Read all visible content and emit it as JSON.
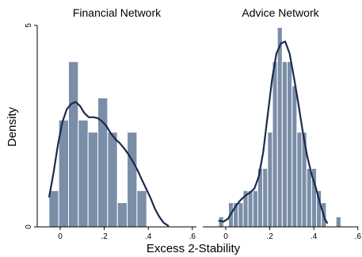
{
  "chart_data": {
    "type": "histogram",
    "xlabel": "Excess 2-Stability",
    "ylabel": "Density",
    "xlim": [
      -0.08,
      0.64
    ],
    "ylim": [
      0,
      5
    ],
    "x_ticks": [
      0,
      0.2,
      0.4,
      0.6
    ],
    "x_tick_labels": [
      "0",
      ".2",
      ".4",
      ".6"
    ],
    "y_ticks": [
      0,
      5
    ],
    "y_tick_labels": [
      "0",
      "5"
    ],
    "bar_color": "#7b8ea8",
    "curve_color": "#1a2a4f",
    "grid": false,
    "panels": [
      {
        "title": "Financial Network",
        "bin_width": 0.0444,
        "bins": [
          {
            "x0": -0.051,
            "x1": -0.0066,
            "density": 0.9
          },
          {
            "x0": -0.0066,
            "x1": 0.0378,
            "density": 2.65
          },
          {
            "x0": 0.0378,
            "x1": 0.0822,
            "density": 4.1
          },
          {
            "x0": 0.0822,
            "x1": 0.1266,
            "density": 2.65
          },
          {
            "x0": 0.1266,
            "x1": 0.171,
            "density": 2.35
          },
          {
            "x0": 0.171,
            "x1": 0.2154,
            "density": 3.2
          },
          {
            "x0": 0.2154,
            "x1": 0.2598,
            "density": 2.35
          },
          {
            "x0": 0.2598,
            "x1": 0.3042,
            "density": 0.6
          },
          {
            "x0": 0.3042,
            "x1": 0.3486,
            "density": 2.35
          },
          {
            "x0": 0.3486,
            "x1": 0.393,
            "density": 0.9
          }
        ],
        "kde": [
          [
            -0.05,
            0.75
          ],
          [
            -0.03,
            1.35
          ],
          [
            -0.01,
            2.05
          ],
          [
            0.01,
            2.6
          ],
          [
            0.03,
            2.92
          ],
          [
            0.05,
            3.05
          ],
          [
            0.07,
            3.1
          ],
          [
            0.09,
            3.0
          ],
          [
            0.11,
            2.82
          ],
          [
            0.13,
            2.72
          ],
          [
            0.15,
            2.72
          ],
          [
            0.17,
            2.7
          ],
          [
            0.19,
            2.62
          ],
          [
            0.21,
            2.5
          ],
          [
            0.23,
            2.32
          ],
          [
            0.25,
            2.18
          ],
          [
            0.27,
            2.08
          ],
          [
            0.29,
            1.95
          ],
          [
            0.31,
            1.8
          ],
          [
            0.33,
            1.62
          ],
          [
            0.35,
            1.42
          ],
          [
            0.37,
            1.18
          ],
          [
            0.39,
            0.95
          ],
          [
            0.41,
            0.72
          ],
          [
            0.43,
            0.45
          ],
          [
            0.45,
            0.25
          ],
          [
            0.47,
            0.1
          ],
          [
            0.49,
            0.03
          ]
        ]
      },
      {
        "title": "Advice Network",
        "bin_width": 0.0222,
        "bins": [
          {
            "x0": -0.032,
            "x1": -0.0098,
            "density": 0.25
          },
          {
            "x0": 0.0124,
            "x1": 0.0346,
            "density": 0.6
          },
          {
            "x0": 0.0346,
            "x1": 0.0568,
            "density": 0.6
          },
          {
            "x0": 0.0568,
            "x1": 0.079,
            "density": 0.6
          },
          {
            "x0": 0.079,
            "x1": 0.1012,
            "density": 0.9
          },
          {
            "x0": 0.1012,
            "x1": 0.1234,
            "density": 0.9
          },
          {
            "x0": 0.1234,
            "x1": 0.1456,
            "density": 0.9
          },
          {
            "x0": 0.1456,
            "x1": 0.1678,
            "density": 1.45
          },
          {
            "x0": 0.1678,
            "x1": 0.19,
            "density": 1.45
          },
          {
            "x0": 0.19,
            "x1": 0.2122,
            "density": 2.35
          },
          {
            "x0": 0.2122,
            "x1": 0.2344,
            "density": 4.1
          },
          {
            "x0": 0.2344,
            "x1": 0.2566,
            "density": 4.95
          },
          {
            "x0": 0.2566,
            "x1": 0.2788,
            "density": 4.1
          },
          {
            "x0": 0.2788,
            "x1": 0.301,
            "density": 4.1
          },
          {
            "x0": 0.301,
            "x1": 0.3232,
            "density": 3.5
          },
          {
            "x0": 0.3232,
            "x1": 0.3454,
            "density": 2.35
          },
          {
            "x0": 0.3454,
            "x1": 0.3676,
            "density": 2.35
          },
          {
            "x0": 0.3676,
            "x1": 0.3898,
            "density": 1.45
          },
          {
            "x0": 0.3898,
            "x1": 0.412,
            "density": 1.45
          },
          {
            "x0": 0.412,
            "x1": 0.4342,
            "density": 0.9
          },
          {
            "x0": 0.4342,
            "x1": 0.4564,
            "density": 0.6
          },
          {
            "x0": 0.5008,
            "x1": 0.523,
            "density": 0.25
          }
        ],
        "kde": [
          [
            -0.03,
            0.15
          ],
          [
            -0.01,
            0.13
          ],
          [
            0.01,
            0.2
          ],
          [
            0.03,
            0.38
          ],
          [
            0.05,
            0.55
          ],
          [
            0.07,
            0.68
          ],
          [
            0.09,
            0.78
          ],
          [
            0.11,
            0.85
          ],
          [
            0.13,
            0.95
          ],
          [
            0.15,
            1.25
          ],
          [
            0.17,
            1.85
          ],
          [
            0.19,
            2.75
          ],
          [
            0.21,
            3.65
          ],
          [
            0.23,
            4.3
          ],
          [
            0.25,
            4.55
          ],
          [
            0.27,
            4.6
          ],
          [
            0.29,
            4.3
          ],
          [
            0.31,
            3.7
          ],
          [
            0.33,
            3.05
          ],
          [
            0.35,
            2.35
          ],
          [
            0.37,
            1.75
          ],
          [
            0.39,
            1.3
          ],
          [
            0.41,
            0.95
          ],
          [
            0.43,
            0.55
          ],
          [
            0.45,
            0.2
          ],
          [
            0.46,
            0.1
          ]
        ]
      }
    ]
  }
}
